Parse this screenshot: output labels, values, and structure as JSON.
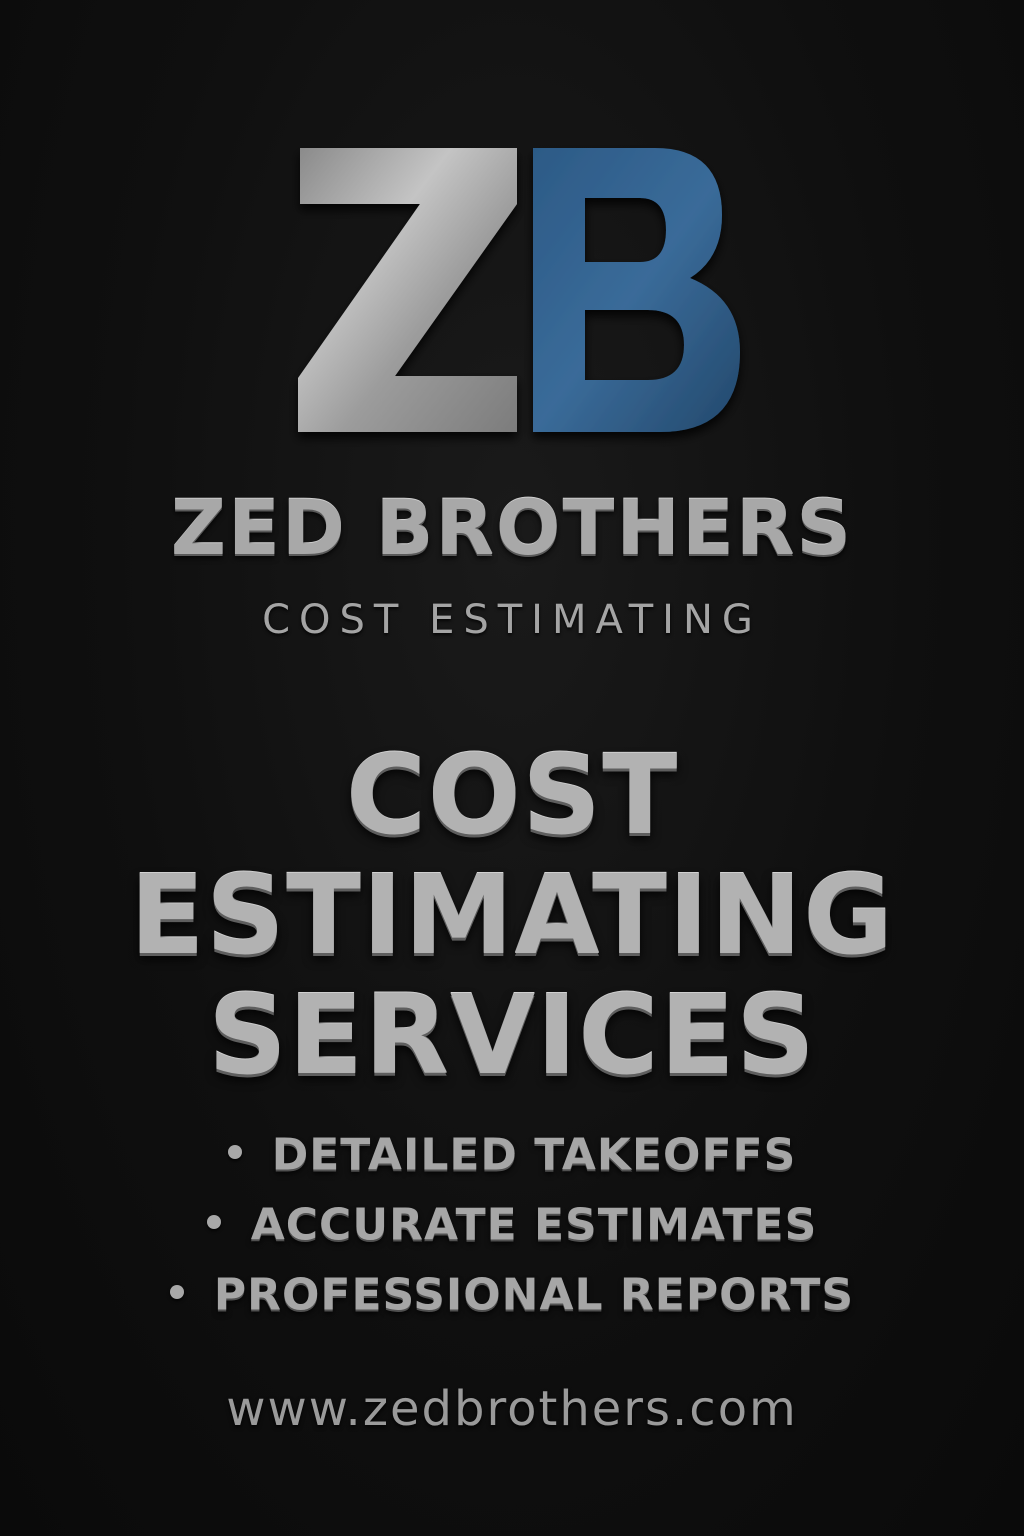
{
  "logo": {
    "monogram_letters": [
      "Z",
      "B"
    ],
    "metal_color": "#a9a9a9",
    "accent_color": "#2f5d8a"
  },
  "brand": {
    "name": "ZED BROTHERS",
    "tagline": "COST ESTIMATING"
  },
  "headline": {
    "lines": [
      "COST",
      "ESTIMATING",
      "SERVICES"
    ]
  },
  "features": [
    "DETAILED TAKEOFFS",
    "ACCURATE ESTIMATES",
    "PROFESSIONAL REPORTS"
  ],
  "website": "www.zedbrothers.com",
  "colors": {
    "background": "#0f0f0f",
    "text": "#a8a8a8"
  }
}
